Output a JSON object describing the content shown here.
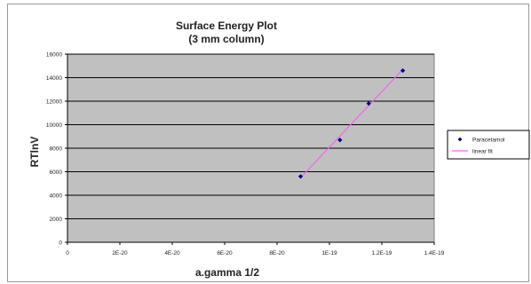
{
  "chart_data": {
    "type": "scatter",
    "title_lines": [
      "Surface Energy Plot",
      "(3 mm column)"
    ],
    "xlabel": "a.gamma 1/2",
    "ylabel": "RTlnV",
    "xlim": [
      0,
      1.4e-19
    ],
    "ylim": [
      0,
      16000
    ],
    "x_ticks": [
      0,
      2e-20,
      4e-20,
      6e-20,
      8e-20,
      1e-19,
      1.2e-19,
      1.4e-19
    ],
    "x_tick_labels": [
      "0",
      "2E-20",
      "4E-20",
      "6E-20",
      "8E-20",
      "1E-19",
      "1.2E-19",
      "1.4E-19"
    ],
    "y_ticks": [
      0,
      2000,
      4000,
      6000,
      8000,
      10000,
      12000,
      14000,
      16000
    ],
    "y_tick_labels": [
      "0",
      "2000",
      "4000",
      "6000",
      "8000",
      "10000",
      "12000",
      "14000",
      "16000"
    ],
    "grid": "horizontal",
    "plot_background": "#c0c0c0",
    "series": [
      {
        "name": "Paracetamol",
        "type": "scatter",
        "color": "#00008b",
        "x": [
          8.9e-20,
          1.04e-19,
          1.15e-19,
          1.28e-19
        ],
        "y": [
          5600,
          8700,
          11800,
          14600
        ]
      },
      {
        "name": "linear fit",
        "type": "line",
        "color": "#ee66ee",
        "x": [
          8.9e-20,
          1.28e-19
        ],
        "y": [
          5500,
          14700
        ]
      }
    ],
    "legend_position": "right"
  }
}
